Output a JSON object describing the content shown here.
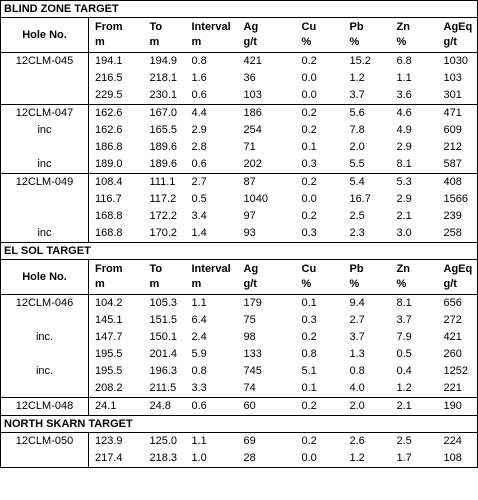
{
  "sections": [
    {
      "title": "BLIND ZONE TARGET",
      "header": [
        [
          "Hole No."
        ],
        [
          "From",
          "m"
        ],
        [
          "To",
          "m"
        ],
        [
          "Interval",
          "m"
        ],
        [
          "Ag",
          "g/t"
        ],
        [
          "Cu",
          "%"
        ],
        [
          "Pb",
          "%"
        ],
        [
          "Zn",
          "%"
        ],
        [
          "AgEq",
          "g/t"
        ]
      ],
      "groups": [
        [
          [
            "12CLM-045",
            "194.1",
            "194.9",
            "0.8",
            "421",
            "0.2",
            "15.2",
            "6.8",
            "1030"
          ],
          [
            null,
            "216.5",
            "218.1",
            "1.6",
            "36",
            "0.0",
            "1.2",
            "1.1",
            "103"
          ],
          [
            null,
            "229.5",
            "230.1",
            "0.6",
            "103",
            "0.0",
            "3.7",
            "3.6",
            "301"
          ]
        ],
        [
          [
            "12CLM-047",
            "162.6",
            "167.0",
            "4.4",
            "186",
            "0.2",
            "5.6",
            "4.6",
            "471"
          ],
          [
            "inc",
            "162.6",
            "165.5",
            "2.9",
            "254",
            "0.2",
            "7.8",
            "4.9",
            "609"
          ],
          [
            null,
            "186.8",
            "189.6",
            "2.8",
            "71",
            "0.1",
            "2.0",
            "2.9",
            "212"
          ],
          [
            "inc",
            "189.0",
            "189.6",
            "0.6",
            "202",
            "0.3",
            "5.5",
            "8.1",
            "587"
          ]
        ],
        [
          [
            "12CLM-049",
            "108.4",
            "111.1",
            "2.7",
            "87",
            "0.2",
            "5.4",
            "5.3",
            "408"
          ],
          [
            null,
            "116.7",
            "117.2",
            "0.5",
            "1040",
            "0.0",
            "16.7",
            "2.9",
            "1566"
          ],
          [
            null,
            "168.8",
            "172.2",
            "3.4",
            "97",
            "0.2",
            "2.5",
            "2.1",
            "239"
          ],
          [
            "inc",
            "168.8",
            "170.2",
            "1.4",
            "93",
            "0.3",
            "2.3",
            "3.0",
            "258"
          ]
        ]
      ]
    },
    {
      "title": "EL SOL TARGET",
      "header": [
        [
          "Hole No."
        ],
        [
          "From",
          "m"
        ],
        [
          "To",
          "m"
        ],
        [
          "Interval",
          "m"
        ],
        [
          "Ag",
          "g/t"
        ],
        [
          "Cu",
          "%"
        ],
        [
          "Pb",
          "%"
        ],
        [
          "Zn",
          "%"
        ],
        [
          "AgEq",
          "g/t"
        ]
      ],
      "groups": [
        [
          [
            "12CLM-046",
            "104.2",
            "105.3",
            "1.1",
            "179",
            "0.1",
            "9.4",
            "8.1",
            "656"
          ],
          [
            null,
            "145.1",
            "151.5",
            "6.4",
            "75",
            "0.3",
            "2.7",
            "3.7",
            "272"
          ],
          [
            "inc.",
            "147.7",
            "150.1",
            "2.4",
            "98",
            "0.2",
            "3.7",
            "7.9",
            "421"
          ],
          [
            null,
            "195.5",
            "201.4",
            "5.9",
            "133",
            "0.8",
            "1.3",
            "0.5",
            "260"
          ],
          [
            "inc.",
            "195.5",
            "196.3",
            "0.8",
            "745",
            "5.1",
            "0.8",
            "0.4",
            "1252"
          ],
          [
            null,
            "208.2",
            "211.5",
            "3.3",
            "74",
            "0.1",
            "4.0",
            "1.2",
            "221"
          ]
        ],
        [
          [
            "12CLM-048",
            "24.1",
            "24.8",
            "0.6",
            "60",
            "0.2",
            "2.0",
            "2.1",
            "190"
          ]
        ]
      ]
    },
    {
      "title": "NORTH SKARN TARGET",
      "groups": [
        [
          [
            "12CLM-050",
            "123.9",
            "125.0",
            "1.1",
            "69",
            "0.2",
            "2.6",
            "2.5",
            "224"
          ],
          [
            null,
            "217.4",
            "218.3",
            "1.0",
            "28",
            "0.0",
            "1.2",
            "1.7",
            "108"
          ]
        ]
      ]
    }
  ]
}
